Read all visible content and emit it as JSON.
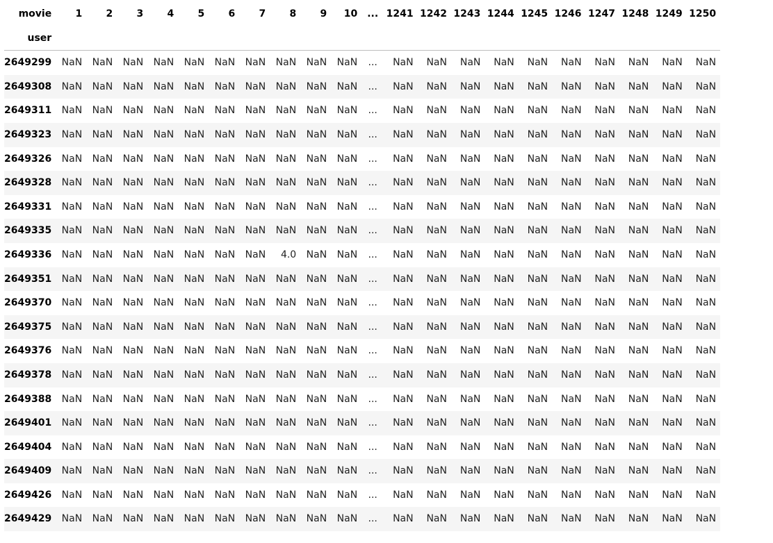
{
  "table": {
    "columns_axis_label": "movie",
    "index_axis_label": "user",
    "left_columns": [
      "1",
      "2",
      "3",
      "4",
      "5",
      "6",
      "7",
      "8",
      "9",
      "10"
    ],
    "ellipsis": "...",
    "right_columns": [
      "1241",
      "1242",
      "1243",
      "1244",
      "1245",
      "1246",
      "1247",
      "1248",
      "1249",
      "1250"
    ],
    "null_value": "NaN",
    "rows": [
      {
        "user": "2649299",
        "left": [
          "NaN",
          "NaN",
          "NaN",
          "NaN",
          "NaN",
          "NaN",
          "NaN",
          "NaN",
          "NaN",
          "NaN"
        ],
        "right": [
          "NaN",
          "NaN",
          "NaN",
          "NaN",
          "NaN",
          "NaN",
          "NaN",
          "NaN",
          "NaN",
          "NaN"
        ]
      },
      {
        "user": "2649308",
        "left": [
          "NaN",
          "NaN",
          "NaN",
          "NaN",
          "NaN",
          "NaN",
          "NaN",
          "NaN",
          "NaN",
          "NaN"
        ],
        "right": [
          "NaN",
          "NaN",
          "NaN",
          "NaN",
          "NaN",
          "NaN",
          "NaN",
          "NaN",
          "NaN",
          "NaN"
        ]
      },
      {
        "user": "2649311",
        "left": [
          "NaN",
          "NaN",
          "NaN",
          "NaN",
          "NaN",
          "NaN",
          "NaN",
          "NaN",
          "NaN",
          "NaN"
        ],
        "right": [
          "NaN",
          "NaN",
          "NaN",
          "NaN",
          "NaN",
          "NaN",
          "NaN",
          "NaN",
          "NaN",
          "NaN"
        ]
      },
      {
        "user": "2649323",
        "left": [
          "NaN",
          "NaN",
          "NaN",
          "NaN",
          "NaN",
          "NaN",
          "NaN",
          "NaN",
          "NaN",
          "NaN"
        ],
        "right": [
          "NaN",
          "NaN",
          "NaN",
          "NaN",
          "NaN",
          "NaN",
          "NaN",
          "NaN",
          "NaN",
          "NaN"
        ]
      },
      {
        "user": "2649326",
        "left": [
          "NaN",
          "NaN",
          "NaN",
          "NaN",
          "NaN",
          "NaN",
          "NaN",
          "NaN",
          "NaN",
          "NaN"
        ],
        "right": [
          "NaN",
          "NaN",
          "NaN",
          "NaN",
          "NaN",
          "NaN",
          "NaN",
          "NaN",
          "NaN",
          "NaN"
        ]
      },
      {
        "user": "2649328",
        "left": [
          "NaN",
          "NaN",
          "NaN",
          "NaN",
          "NaN",
          "NaN",
          "NaN",
          "NaN",
          "NaN",
          "NaN"
        ],
        "right": [
          "NaN",
          "NaN",
          "NaN",
          "NaN",
          "NaN",
          "NaN",
          "NaN",
          "NaN",
          "NaN",
          "NaN"
        ]
      },
      {
        "user": "2649331",
        "left": [
          "NaN",
          "NaN",
          "NaN",
          "NaN",
          "NaN",
          "NaN",
          "NaN",
          "NaN",
          "NaN",
          "NaN"
        ],
        "right": [
          "NaN",
          "NaN",
          "NaN",
          "NaN",
          "NaN",
          "NaN",
          "NaN",
          "NaN",
          "NaN",
          "NaN"
        ]
      },
      {
        "user": "2649335",
        "left": [
          "NaN",
          "NaN",
          "NaN",
          "NaN",
          "NaN",
          "NaN",
          "NaN",
          "NaN",
          "NaN",
          "NaN"
        ],
        "right": [
          "NaN",
          "NaN",
          "NaN",
          "NaN",
          "NaN",
          "NaN",
          "NaN",
          "NaN",
          "NaN",
          "NaN"
        ]
      },
      {
        "user": "2649336",
        "left": [
          "NaN",
          "NaN",
          "NaN",
          "NaN",
          "NaN",
          "NaN",
          "NaN",
          "4.0",
          "NaN",
          "NaN"
        ],
        "right": [
          "NaN",
          "NaN",
          "NaN",
          "NaN",
          "NaN",
          "NaN",
          "NaN",
          "NaN",
          "NaN",
          "NaN"
        ]
      },
      {
        "user": "2649351",
        "left": [
          "NaN",
          "NaN",
          "NaN",
          "NaN",
          "NaN",
          "NaN",
          "NaN",
          "NaN",
          "NaN",
          "NaN"
        ],
        "right": [
          "NaN",
          "NaN",
          "NaN",
          "NaN",
          "NaN",
          "NaN",
          "NaN",
          "NaN",
          "NaN",
          "NaN"
        ]
      },
      {
        "user": "2649370",
        "left": [
          "NaN",
          "NaN",
          "NaN",
          "NaN",
          "NaN",
          "NaN",
          "NaN",
          "NaN",
          "NaN",
          "NaN"
        ],
        "right": [
          "NaN",
          "NaN",
          "NaN",
          "NaN",
          "NaN",
          "NaN",
          "NaN",
          "NaN",
          "NaN",
          "NaN"
        ]
      },
      {
        "user": "2649375",
        "left": [
          "NaN",
          "NaN",
          "NaN",
          "NaN",
          "NaN",
          "NaN",
          "NaN",
          "NaN",
          "NaN",
          "NaN"
        ],
        "right": [
          "NaN",
          "NaN",
          "NaN",
          "NaN",
          "NaN",
          "NaN",
          "NaN",
          "NaN",
          "NaN",
          "NaN"
        ]
      },
      {
        "user": "2649376",
        "left": [
          "NaN",
          "NaN",
          "NaN",
          "NaN",
          "NaN",
          "NaN",
          "NaN",
          "NaN",
          "NaN",
          "NaN"
        ],
        "right": [
          "NaN",
          "NaN",
          "NaN",
          "NaN",
          "NaN",
          "NaN",
          "NaN",
          "NaN",
          "NaN",
          "NaN"
        ]
      },
      {
        "user": "2649378",
        "left": [
          "NaN",
          "NaN",
          "NaN",
          "NaN",
          "NaN",
          "NaN",
          "NaN",
          "NaN",
          "NaN",
          "NaN"
        ],
        "right": [
          "NaN",
          "NaN",
          "NaN",
          "NaN",
          "NaN",
          "NaN",
          "NaN",
          "NaN",
          "NaN",
          "NaN"
        ]
      },
      {
        "user": "2649388",
        "left": [
          "NaN",
          "NaN",
          "NaN",
          "NaN",
          "NaN",
          "NaN",
          "NaN",
          "NaN",
          "NaN",
          "NaN"
        ],
        "right": [
          "NaN",
          "NaN",
          "NaN",
          "NaN",
          "NaN",
          "NaN",
          "NaN",
          "NaN",
          "NaN",
          "NaN"
        ]
      },
      {
        "user": "2649401",
        "left": [
          "NaN",
          "NaN",
          "NaN",
          "NaN",
          "NaN",
          "NaN",
          "NaN",
          "NaN",
          "NaN",
          "NaN"
        ],
        "right": [
          "NaN",
          "NaN",
          "NaN",
          "NaN",
          "NaN",
          "NaN",
          "NaN",
          "NaN",
          "NaN",
          "NaN"
        ]
      },
      {
        "user": "2649404",
        "left": [
          "NaN",
          "NaN",
          "NaN",
          "NaN",
          "NaN",
          "NaN",
          "NaN",
          "NaN",
          "NaN",
          "NaN"
        ],
        "right": [
          "NaN",
          "NaN",
          "NaN",
          "NaN",
          "NaN",
          "NaN",
          "NaN",
          "NaN",
          "NaN",
          "NaN"
        ]
      },
      {
        "user": "2649409",
        "left": [
          "NaN",
          "NaN",
          "NaN",
          "NaN",
          "NaN",
          "NaN",
          "NaN",
          "NaN",
          "NaN",
          "NaN"
        ],
        "right": [
          "NaN",
          "NaN",
          "NaN",
          "NaN",
          "NaN",
          "NaN",
          "NaN",
          "NaN",
          "NaN",
          "NaN"
        ]
      },
      {
        "user": "2649426",
        "left": [
          "NaN",
          "NaN",
          "NaN",
          "NaN",
          "NaN",
          "NaN",
          "NaN",
          "NaN",
          "NaN",
          "NaN"
        ],
        "right": [
          "NaN",
          "NaN",
          "NaN",
          "NaN",
          "NaN",
          "NaN",
          "NaN",
          "NaN",
          "NaN",
          "NaN"
        ]
      },
      {
        "user": "2649429",
        "left": [
          "NaN",
          "NaN",
          "NaN",
          "NaN",
          "NaN",
          "NaN",
          "NaN",
          "NaN",
          "NaN",
          "NaN"
        ],
        "right": [
          "NaN",
          "NaN",
          "NaN",
          "NaN",
          "NaN",
          "NaN",
          "NaN",
          "NaN",
          "NaN",
          "NaN"
        ]
      }
    ]
  }
}
